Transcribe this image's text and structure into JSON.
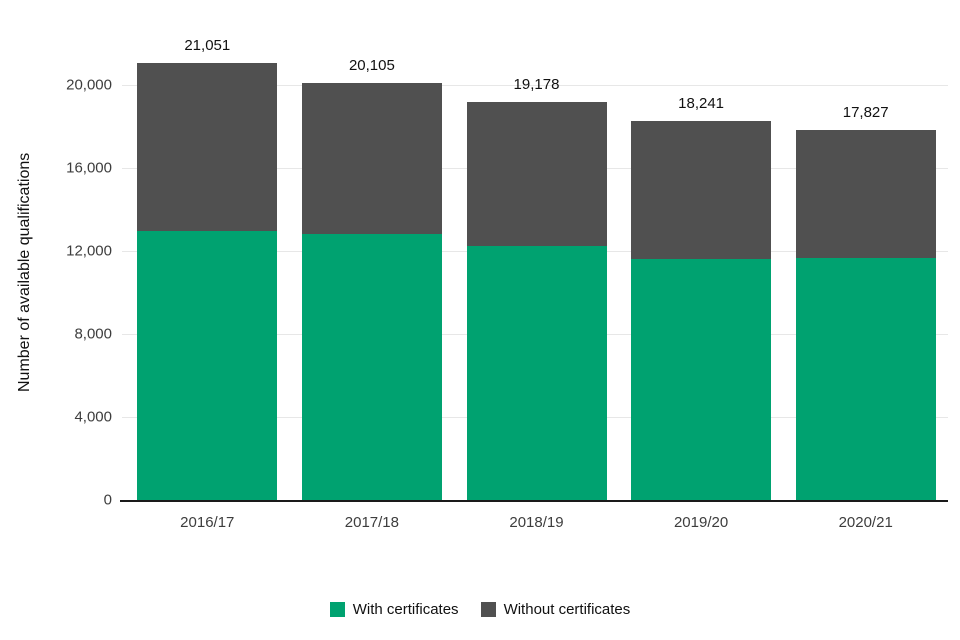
{
  "chart_data": {
    "type": "bar",
    "stacked": true,
    "title": "",
    "xlabel": "",
    "ylabel": "Number of available qualifications",
    "categories": [
      "2016/17",
      "2017/18",
      "2018/19",
      "2019/20",
      "2020/21"
    ],
    "series": [
      {
        "name": "With certificates",
        "color": "#00a270",
        "values": [
          12950,
          12800,
          12250,
          11600,
          11650
        ]
      },
      {
        "name": "Without certificates",
        "color": "#505050",
        "values": [
          8101,
          7305,
          6928,
          6641,
          6177
        ]
      }
    ],
    "totals": [
      21051,
      20105,
      19178,
      18241,
      17827
    ],
    "total_labels": [
      "21,051",
      "20,105",
      "19,178",
      "18,241",
      "17,827"
    ],
    "ylim": [
      0,
      21600
    ],
    "yticks": [
      0,
      4000,
      8000,
      12000,
      16000,
      20000
    ],
    "ytick_labels": [
      "0",
      "4,000",
      "8,000",
      "12,000",
      "16,000",
      "20,000"
    ],
    "grid": true,
    "legend_position": "bottom"
  },
  "colors": {
    "with_certificates": "#00a270",
    "without_certificates": "#505050",
    "gridline": "#e7e7e7",
    "axis": "#1a1a1a"
  }
}
